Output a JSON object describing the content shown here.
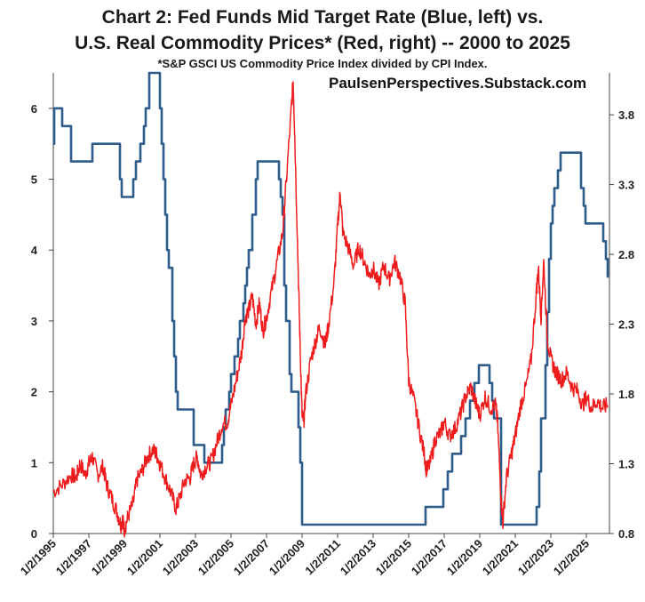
{
  "chart_data": {
    "type": "line",
    "title": "Chart 2: Fed Funds Mid Target Rate (Blue, left) vs.",
    "subtitle": "U.S. Real Commodity Prices* (Red, right) -- 2000 to 2025",
    "footnote": "*S&P GSCI US Commodity Price Index divided by CPI Index.",
    "credit": "PaulsenPerspectives.Substack.com",
    "x_tick_labels": [
      "1/2/1995",
      "1/2/1997",
      "1/2/1999",
      "1/2/2001",
      "1/2/2003",
      "1/2/2005",
      "1/2/2007",
      "1/2/2009",
      "1/2/2011",
      "1/2/2013",
      "1/2/2015",
      "1/2/2017",
      "1/2/2019",
      "1/2/2021",
      "1/2/2023",
      "1/2/2025"
    ],
    "x_range": [
      1995.0,
      2026.3
    ],
    "y_left": {
      "range": [
        0,
        6.5
      ],
      "ticks": [
        "0",
        "1",
        "2",
        "3",
        "4",
        "5",
        "6"
      ]
    },
    "y_right": {
      "range": [
        0.8,
        4.1
      ],
      "ticks": [
        "0.8",
        "1.3",
        "1.8",
        "2.3",
        "2.8",
        "3.3",
        "3.8"
      ]
    },
    "series": [
      {
        "name": "Fed Funds Mid Target Rate",
        "axis": "left",
        "color": "#2e5c8a",
        "step": true,
        "points": [
          [
            1995.0,
            5.5
          ],
          [
            1995.05,
            6.0
          ],
          [
            1995.5,
            5.75
          ],
          [
            1996.0,
            5.25
          ],
          [
            1997.2,
            5.5
          ],
          [
            1998.75,
            5.0
          ],
          [
            1998.85,
            4.75
          ],
          [
            1999.5,
            5.0
          ],
          [
            1999.65,
            5.25
          ],
          [
            1999.9,
            5.5
          ],
          [
            2000.1,
            5.75
          ],
          [
            2000.2,
            6.0
          ],
          [
            2000.4,
            6.5
          ],
          [
            2001.0,
            6.0
          ],
          [
            2001.1,
            5.5
          ],
          [
            2001.2,
            5.0
          ],
          [
            2001.3,
            4.5
          ],
          [
            2001.4,
            4.0
          ],
          [
            2001.5,
            3.75
          ],
          [
            2001.7,
            3.0
          ],
          [
            2001.8,
            2.5
          ],
          [
            2001.9,
            2.0
          ],
          [
            2002.0,
            1.75
          ],
          [
            2002.9,
            1.25
          ],
          [
            2003.5,
            1.0
          ],
          [
            2004.5,
            1.25
          ],
          [
            2004.6,
            1.5
          ],
          [
            2004.7,
            1.75
          ],
          [
            2004.9,
            2.0
          ],
          [
            2005.0,
            2.25
          ],
          [
            2005.2,
            2.5
          ],
          [
            2005.4,
            2.75
          ],
          [
            2005.5,
            3.0
          ],
          [
            2005.7,
            3.25
          ],
          [
            2005.8,
            3.5
          ],
          [
            2005.9,
            3.75
          ],
          [
            2006.0,
            4.0
          ],
          [
            2006.2,
            4.5
          ],
          [
            2006.4,
            5.0
          ],
          [
            2006.5,
            5.25
          ],
          [
            2007.7,
            5.0
          ],
          [
            2007.8,
            4.75
          ],
          [
            2007.9,
            4.5
          ],
          [
            2008.0,
            3.5
          ],
          [
            2008.1,
            3.0
          ],
          [
            2008.3,
            2.25
          ],
          [
            2008.4,
            2.0
          ],
          [
            2008.8,
            1.5
          ],
          [
            2008.9,
            1.0
          ],
          [
            2009.0,
            0.125
          ],
          [
            2015.95,
            0.375
          ],
          [
            2016.95,
            0.625
          ],
          [
            2017.2,
            0.875
          ],
          [
            2017.45,
            1.125
          ],
          [
            2017.95,
            1.375
          ],
          [
            2018.2,
            1.625
          ],
          [
            2018.45,
            1.875
          ],
          [
            2018.7,
            2.125
          ],
          [
            2018.95,
            2.375
          ],
          [
            2019.55,
            2.125
          ],
          [
            2019.7,
            1.875
          ],
          [
            2019.8,
            1.625
          ],
          [
            2020.2,
            0.125
          ],
          [
            2022.2,
            0.375
          ],
          [
            2022.35,
            0.875
          ],
          [
            2022.45,
            1.625
          ],
          [
            2022.7,
            2.375
          ],
          [
            2022.8,
            3.125
          ],
          [
            2022.9,
            3.875
          ],
          [
            2023.0,
            4.375
          ],
          [
            2023.1,
            4.625
          ],
          [
            2023.2,
            4.875
          ],
          [
            2023.4,
            5.125
          ],
          [
            2023.55,
            5.375
          ],
          [
            2024.7,
            4.875
          ],
          [
            2024.85,
            4.625
          ],
          [
            2024.95,
            4.375
          ],
          [
            2025.95,
            4.125
          ],
          [
            2026.1,
            3.875
          ],
          [
            2026.2,
            3.625
          ]
        ]
      },
      {
        "name": "U.S. Real Commodity Prices",
        "axis": "right",
        "color": "#ee1c1c",
        "step": false,
        "points": [
          [
            1995.0,
            1.1
          ],
          [
            1995.5,
            1.15
          ],
          [
            1996.0,
            1.22
          ],
          [
            1996.3,
            1.2
          ],
          [
            1996.5,
            1.3
          ],
          [
            1996.8,
            1.22
          ],
          [
            1997.0,
            1.3
          ],
          [
            1997.2,
            1.35
          ],
          [
            1997.5,
            1.22
          ],
          [
            1997.8,
            1.28
          ],
          [
            1998.0,
            1.15
          ],
          [
            1998.3,
            1.05
          ],
          [
            1998.6,
            0.95
          ],
          [
            1998.8,
            0.86
          ],
          [
            1998.9,
            0.9
          ],
          [
            1999.0,
            0.83
          ],
          [
            1999.2,
            0.92
          ],
          [
            1999.5,
            1.02
          ],
          [
            1999.7,
            1.18
          ],
          [
            2000.0,
            1.25
          ],
          [
            2000.3,
            1.35
          ],
          [
            2000.6,
            1.4
          ],
          [
            2000.8,
            1.37
          ],
          [
            2001.0,
            1.3
          ],
          [
            2001.3,
            1.2
          ],
          [
            2001.6,
            1.1
          ],
          [
            2001.9,
            0.98
          ],
          [
            2002.1,
            1.05
          ],
          [
            2002.4,
            1.18
          ],
          [
            2002.7,
            1.2
          ],
          [
            2002.9,
            1.3
          ],
          [
            2003.1,
            1.35
          ],
          [
            2003.3,
            1.22
          ],
          [
            2003.6,
            1.28
          ],
          [
            2003.9,
            1.32
          ],
          [
            2004.2,
            1.45
          ],
          [
            2004.5,
            1.58
          ],
          [
            2004.8,
            1.6
          ],
          [
            2005.0,
            1.72
          ],
          [
            2005.3,
            1.9
          ],
          [
            2005.6,
            2.1
          ],
          [
            2005.8,
            2.35
          ],
          [
            2006.0,
            2.4
          ],
          [
            2006.2,
            2.5
          ],
          [
            2006.4,
            2.3
          ],
          [
            2006.6,
            2.45
          ],
          [
            2006.8,
            2.25
          ],
          [
            2007.0,
            2.35
          ],
          [
            2007.3,
            2.55
          ],
          [
            2007.6,
            2.75
          ],
          [
            2007.9,
            2.95
          ],
          [
            2008.1,
            3.3
          ],
          [
            2008.4,
            3.85
          ],
          [
            2008.5,
            4.05
          ],
          [
            2008.6,
            3.6
          ],
          [
            2008.8,
            2.6
          ],
          [
            2008.9,
            2.1
          ],
          [
            2009.0,
            1.65
          ],
          [
            2009.1,
            1.6
          ],
          [
            2009.2,
            1.8
          ],
          [
            2009.5,
            2.05
          ],
          [
            2009.8,
            2.2
          ],
          [
            2010.0,
            2.28
          ],
          [
            2010.3,
            2.15
          ],
          [
            2010.5,
            2.3
          ],
          [
            2010.8,
            2.6
          ],
          [
            2011.0,
            3.0
          ],
          [
            2011.15,
            3.25
          ],
          [
            2011.3,
            2.95
          ],
          [
            2011.6,
            2.85
          ],
          [
            2011.9,
            2.72
          ],
          [
            2012.2,
            2.85
          ],
          [
            2012.5,
            2.75
          ],
          [
            2012.8,
            2.65
          ],
          [
            2013.0,
            2.7
          ],
          [
            2013.3,
            2.58
          ],
          [
            2013.6,
            2.72
          ],
          [
            2013.9,
            2.62
          ],
          [
            2014.2,
            2.75
          ],
          [
            2014.5,
            2.65
          ],
          [
            2014.8,
            2.45
          ],
          [
            2015.0,
            1.9
          ],
          [
            2015.3,
            1.75
          ],
          [
            2015.6,
            1.55
          ],
          [
            2015.9,
            1.35
          ],
          [
            2016.0,
            1.25
          ],
          [
            2016.2,
            1.3
          ],
          [
            2016.5,
            1.48
          ],
          [
            2016.8,
            1.52
          ],
          [
            2017.0,
            1.6
          ],
          [
            2017.3,
            1.5
          ],
          [
            2017.6,
            1.55
          ],
          [
            2017.9,
            1.65
          ],
          [
            2018.2,
            1.78
          ],
          [
            2018.5,
            1.85
          ],
          [
            2018.8,
            1.72
          ],
          [
            2019.0,
            1.65
          ],
          [
            2019.3,
            1.78
          ],
          [
            2019.6,
            1.7
          ],
          [
            2019.9,
            1.72
          ],
          [
            2020.0,
            1.6
          ],
          [
            2020.2,
            1.05
          ],
          [
            2020.3,
            0.88
          ],
          [
            2020.5,
            1.2
          ],
          [
            2020.8,
            1.38
          ],
          [
            2021.0,
            1.5
          ],
          [
            2021.3,
            1.72
          ],
          [
            2021.6,
            1.85
          ],
          [
            2021.9,
            2.05
          ],
          [
            2022.2,
            2.55
          ],
          [
            2022.3,
            2.7
          ],
          [
            2022.45,
            2.35
          ],
          [
            2022.6,
            2.75
          ],
          [
            2022.8,
            2.2
          ],
          [
            2023.0,
            2.05
          ],
          [
            2023.3,
            1.95
          ],
          [
            2023.6,
            1.9
          ],
          [
            2023.9,
            1.95
          ],
          [
            2024.2,
            1.85
          ],
          [
            2024.5,
            1.82
          ],
          [
            2024.8,
            1.72
          ],
          [
            2025.0,
            1.78
          ],
          [
            2025.3,
            1.7
          ],
          [
            2025.6,
            1.75
          ],
          [
            2025.9,
            1.7
          ],
          [
            2026.2,
            1.72
          ]
        ]
      }
    ]
  }
}
